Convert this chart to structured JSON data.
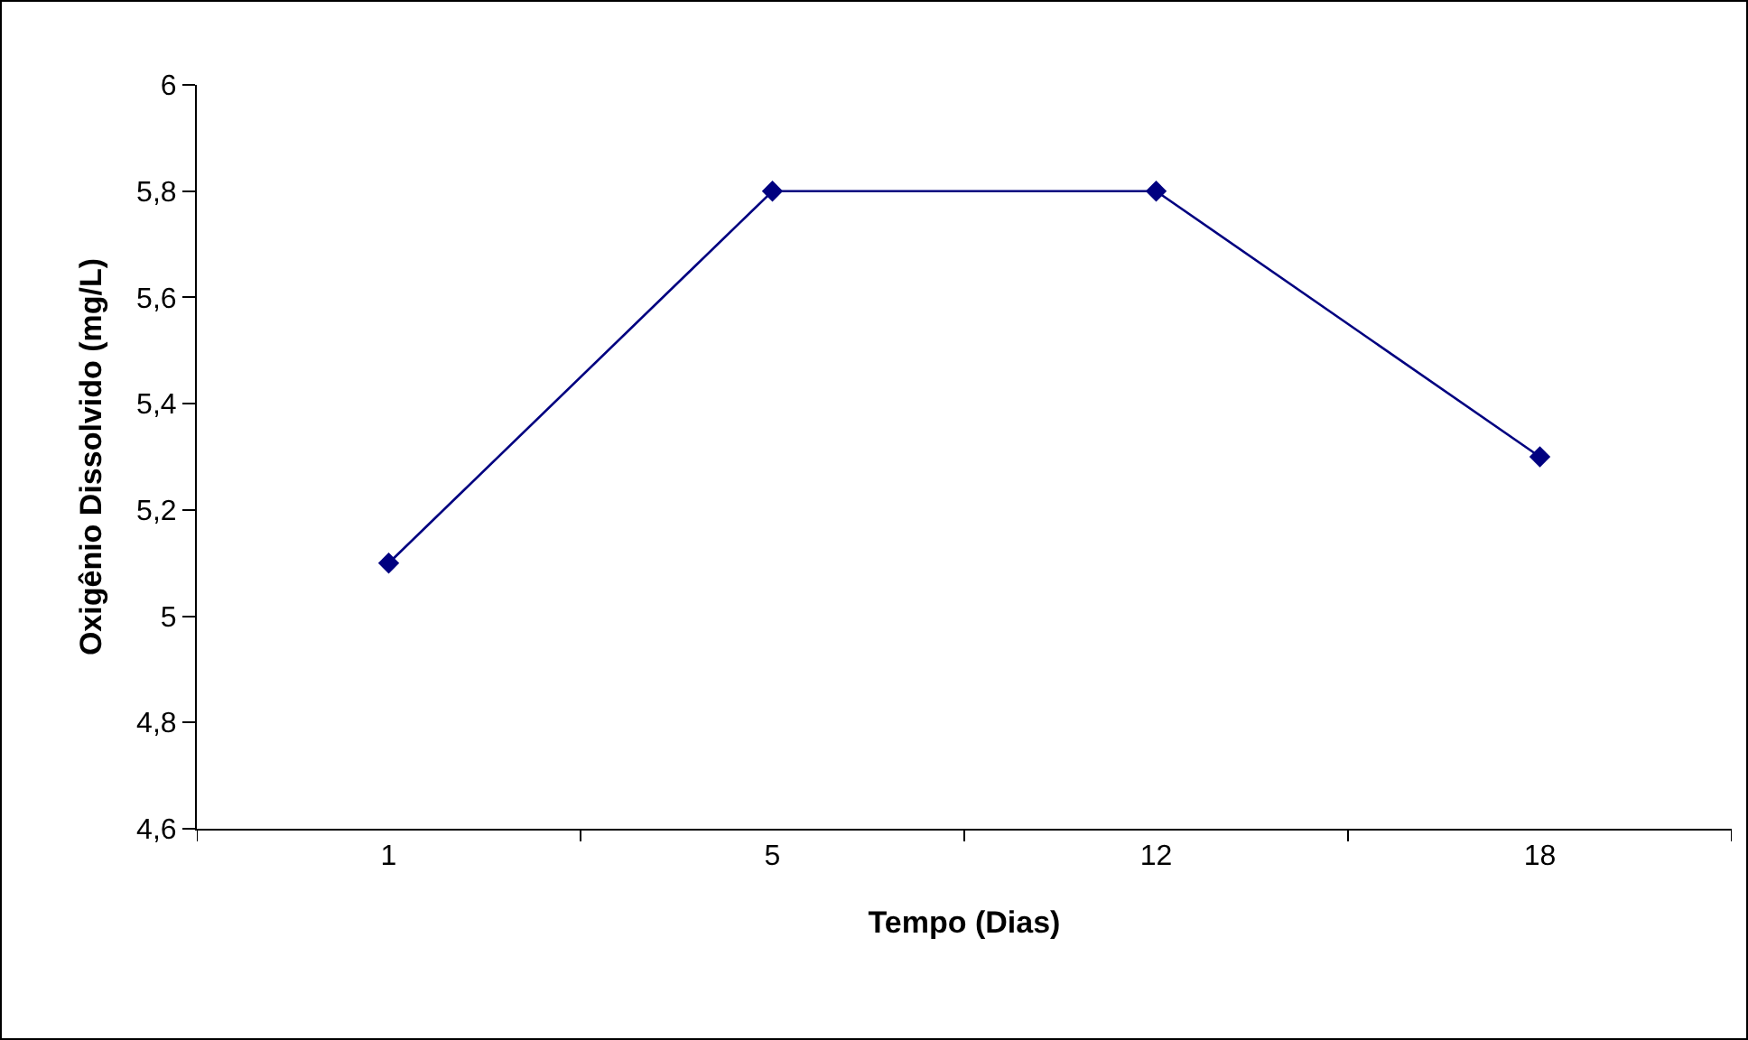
{
  "chart_data": {
    "type": "line",
    "xlabel": "Tempo (Dias)",
    "ylabel": "Oxigênio Dissolvido (mg/L)",
    "categories": [
      "1",
      "5",
      "12",
      "18"
    ],
    "series": [
      {
        "color": "#000080",
        "values": [
          5.1,
          5.8,
          5.8,
          5.3
        ]
      }
    ],
    "ylim": [
      4.6,
      6
    ],
    "yticks": [
      {
        "value": 4.6,
        "label": "4,6"
      },
      {
        "value": 4.8,
        "label": "4,8"
      },
      5,
      {
        "value": 5.2,
        "label": "5,2"
      },
      {
        "value": 5.4,
        "label": "5,4"
      },
      {
        "value": 5.6,
        "label": "5,6"
      },
      {
        "value": 5.8,
        "label": "5,8"
      },
      6
    ],
    "grid": false,
    "legend": false,
    "marker": "diamond",
    "line_style": "solid"
  }
}
